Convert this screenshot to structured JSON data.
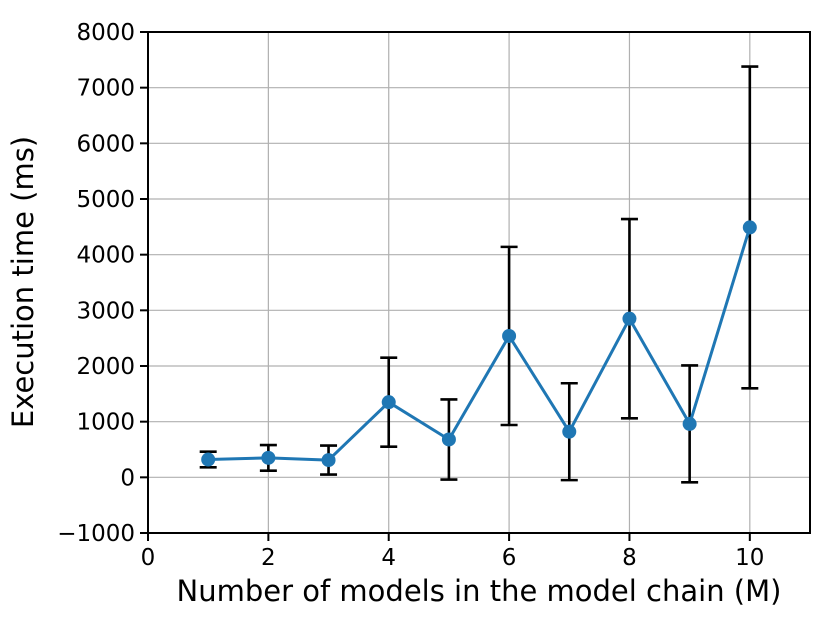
{
  "figure": {
    "background": "#ffffff"
  },
  "chart_data": {
    "type": "line",
    "subtype": "errorbar",
    "title": "",
    "xlabel": "Number of models in the model chain (M)",
    "ylabel": "Execution time (ms)",
    "x": [
      1,
      2,
      3,
      4,
      5,
      6,
      7,
      8,
      9,
      10
    ],
    "y": [
      320,
      350,
      310,
      1350,
      680,
      2540,
      820,
      2850,
      960,
      4490
    ],
    "yerr": [
      140,
      230,
      260,
      800,
      720,
      1600,
      870,
      1790,
      1050,
      2890
    ],
    "xlim": [
      0,
      11
    ],
    "ylim": [
      -1000,
      8000
    ],
    "xticks": [
      0,
      2,
      4,
      6,
      8,
      10
    ],
    "xtick_labels": [
      "0",
      "2",
      "4",
      "6",
      "8",
      "10"
    ],
    "yticks": [
      -1000,
      0,
      1000,
      2000,
      3000,
      4000,
      5000,
      6000,
      7000,
      8000
    ],
    "ytick_labels": [
      "−1000",
      "0",
      "1000",
      "2000",
      "3000",
      "4000",
      "5000",
      "6000",
      "7000",
      "8000"
    ],
    "grid": true,
    "legend": "none",
    "line_color": "#1f77b4",
    "marker": "circle",
    "marker_color": "#1f77b4",
    "errorbar_color": "#000000",
    "grid_color": "#b0b0b0",
    "spine_color": "#000000",
    "text_color": "#000000"
  }
}
